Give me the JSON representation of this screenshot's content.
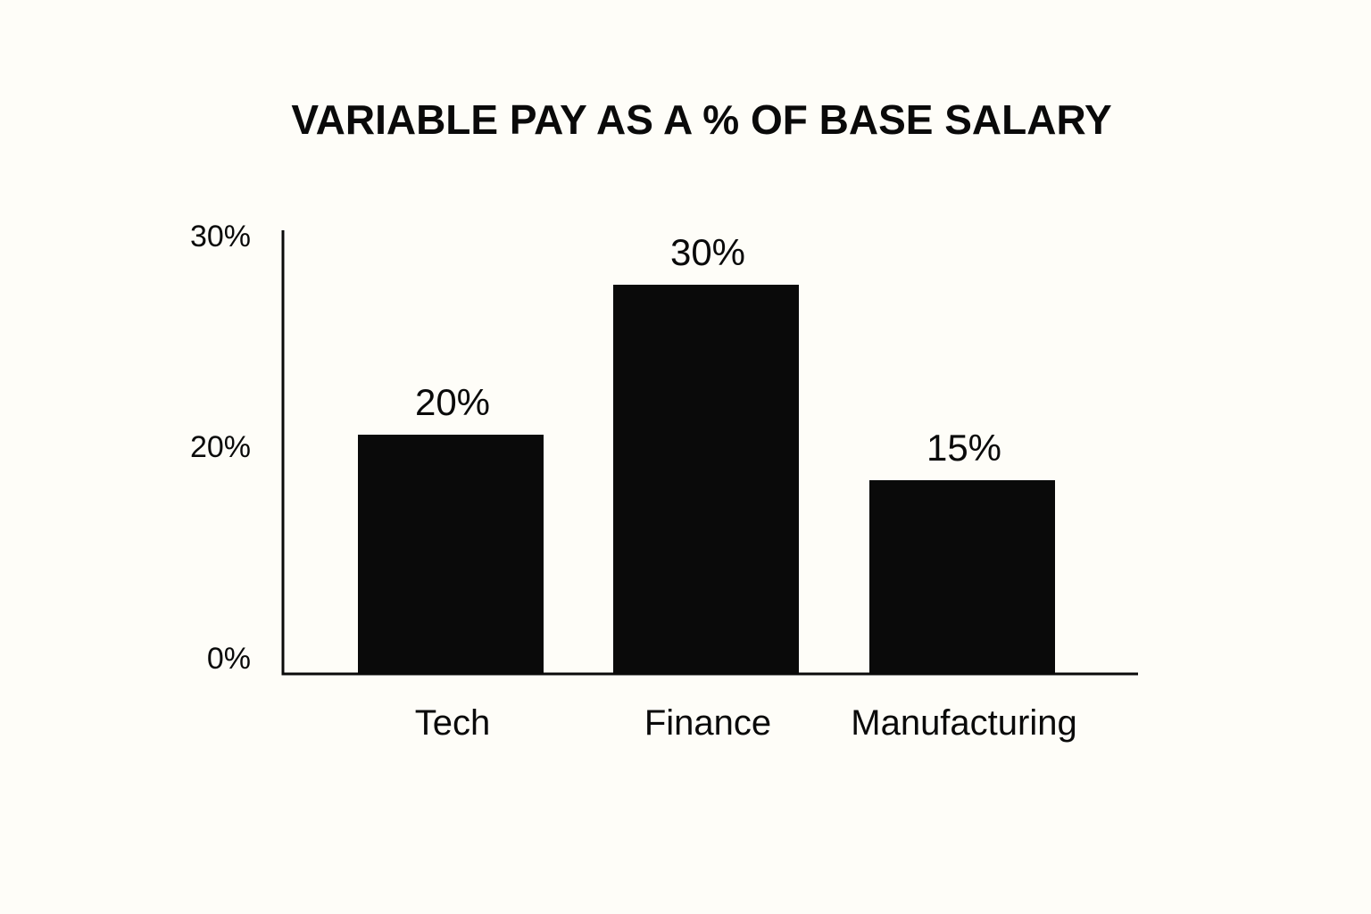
{
  "chart_data": {
    "type": "bar",
    "title": "VARIABLE PAY AS A % OF BASE SALARY",
    "xlabel": "",
    "ylabel": "",
    "categories": [
      "Tech",
      "Finance",
      "Manufacturing"
    ],
    "values": [
      20,
      30,
      15
    ],
    "data_labels": [
      "20%",
      "30%",
      "15%"
    ],
    "y_ticks": [
      0,
      20,
      30
    ],
    "y_tick_labels": [
      "0%",
      "20%",
      "30%"
    ],
    "ylim": [
      0,
      30
    ],
    "grid": false,
    "legend": "none",
    "colors": {
      "bar": "#0a0a0a",
      "axis": "#0a0a0a",
      "background": "#fefdf8"
    }
  }
}
